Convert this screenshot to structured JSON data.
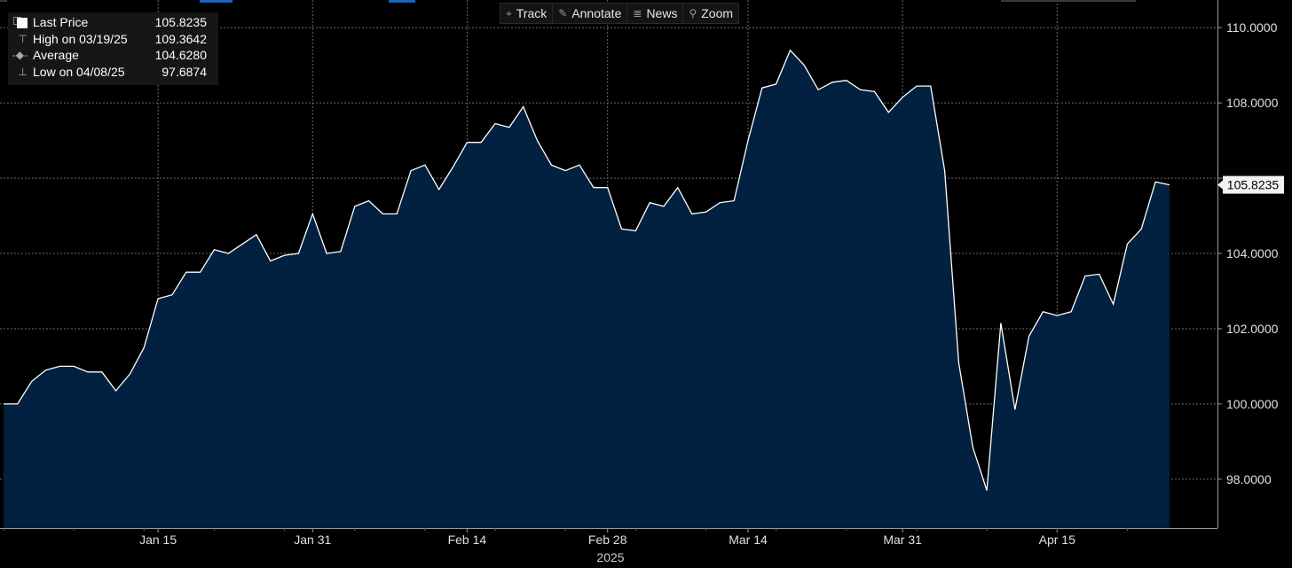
{
  "toolbar": {
    "buttons": [
      {
        "icon": "crosshair-icon",
        "glyph": "⌖",
        "label": "Track"
      },
      {
        "icon": "pencil-icon",
        "glyph": "✎",
        "label": "Annotate"
      },
      {
        "icon": "news-icon",
        "glyph": "≣",
        "label": "News"
      },
      {
        "icon": "magnifier-icon",
        "glyph": "⚲",
        "label": "Zoom"
      }
    ]
  },
  "legend": {
    "rows": [
      {
        "label": "Last Price",
        "value": "105.8235"
      },
      {
        "label": "High on 03/19/25",
        "value": "109.3642"
      },
      {
        "label": "Average",
        "value": "104.6280"
      },
      {
        "label": "Low on 04/08/25",
        "value": "97.6874"
      }
    ]
  },
  "last_price_tag": "105.8235",
  "colors": {
    "background": "#000000",
    "area_fill": "#02203f",
    "line": "#ffffff",
    "grid": "#6a6a6a",
    "accent": "#1565c0"
  },
  "chart_data": {
    "type": "area",
    "title": "",
    "xlabel": "2025",
    "ylabel": "",
    "ylim": [
      96.7,
      110.5
    ],
    "grid": true,
    "legend_position": "top-left",
    "y_ticks": [
      98,
      100,
      102,
      104,
      106,
      108,
      110
    ],
    "y_tick_labels": [
      "98.0000",
      "100.0000",
      "102.0000",
      "104.0000",
      "",
      "108.0000",
      "110.0000"
    ],
    "x_ticks": [
      {
        "x": 11,
        "label": "Jan 15"
      },
      {
        "x": 22,
        "label": "Jan 31"
      },
      {
        "x": 33,
        "label": "Feb 14"
      },
      {
        "x": 43,
        "label": "Feb 28"
      },
      {
        "x": 53,
        "label": "Mar 14"
      },
      {
        "x": 64,
        "label": "Mar 31"
      },
      {
        "x": 75,
        "label": "Apr 15"
      }
    ],
    "series": [
      {
        "name": "Last Price",
        "values": [
          100.0,
          100.0,
          100.6,
          100.9,
          101.0,
          101.0,
          100.85,
          100.85,
          100.35,
          100.8,
          101.5,
          102.8,
          102.9,
          103.5,
          103.5,
          104.1,
          104.0,
          104.25,
          104.5,
          103.8,
          103.95,
          104.0,
          105.05,
          104.0,
          104.05,
          105.25,
          105.4,
          105.05,
          105.05,
          106.2,
          106.35,
          105.7,
          106.3,
          106.95,
          106.95,
          107.45,
          107.35,
          107.9,
          107.0,
          106.35,
          106.2,
          106.35,
          105.75,
          105.75,
          104.65,
          104.6,
          105.35,
          105.25,
          105.75,
          105.05,
          105.1,
          105.35,
          105.4,
          107.0,
          108.4,
          108.5,
          109.4,
          109.0,
          108.35,
          108.55,
          108.6,
          108.35,
          108.3,
          107.75,
          108.15,
          108.45,
          108.45,
          106.2,
          101.1,
          98.85,
          97.7,
          102.15,
          99.85,
          101.8,
          102.45,
          102.35,
          102.45,
          103.4,
          103.45,
          102.65,
          104.25,
          104.65,
          105.9,
          105.8235
        ]
      }
    ]
  }
}
